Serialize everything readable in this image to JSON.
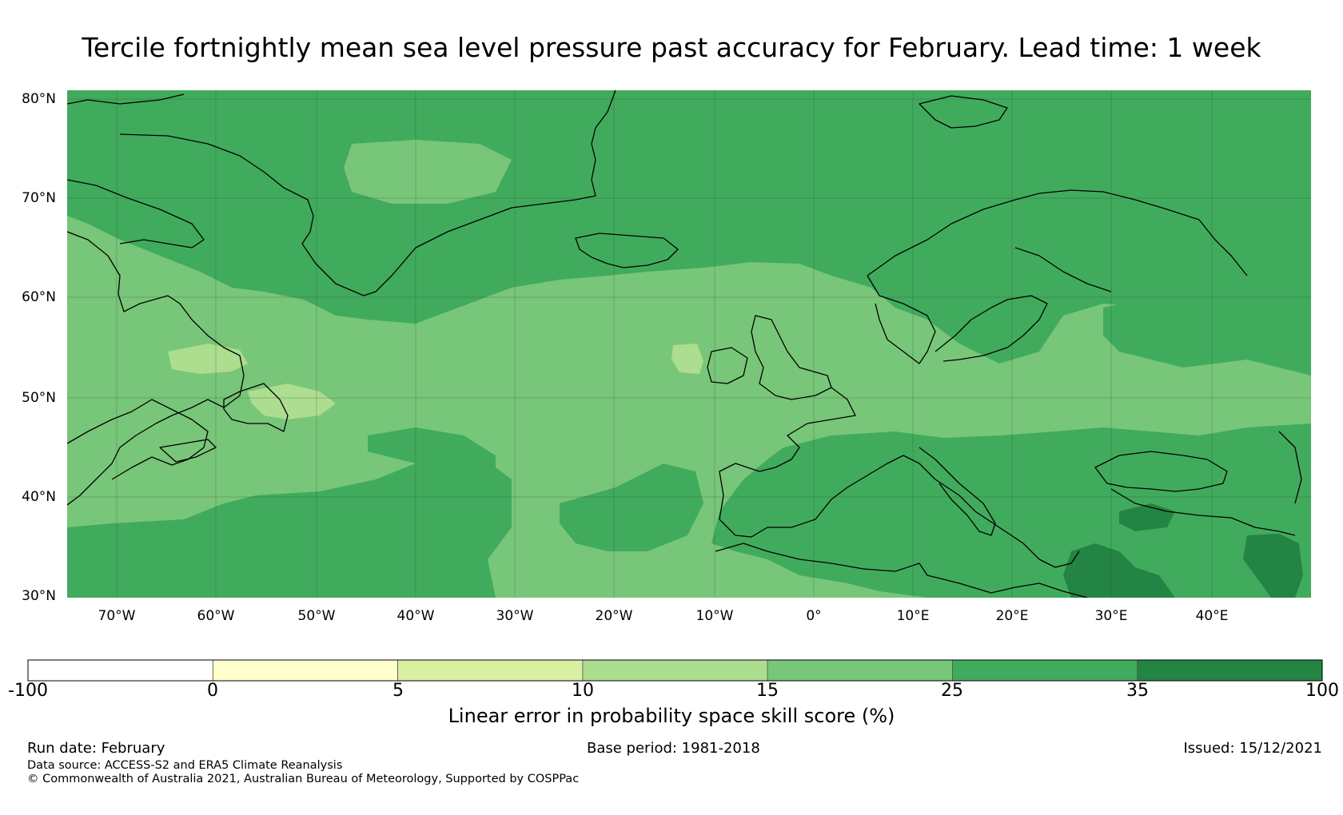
{
  "title": "Tercile fortnightly mean sea level pressure past accuracy for February. Lead time: 1 week",
  "map": {
    "lon_range": [
      -75,
      50
    ],
    "lat_range": [
      30,
      81
    ],
    "lat_labels": [
      {
        "value": 80,
        "text": "80°N"
      },
      {
        "value": 70,
        "text": "70°N"
      },
      {
        "value": 60,
        "text": "60°N"
      },
      {
        "value": 50,
        "text": "50°N"
      },
      {
        "value": 40,
        "text": "40°N"
      },
      {
        "value": 30,
        "text": "30°N"
      }
    ],
    "lon_labels": [
      {
        "value": -70,
        "text": "70°W"
      },
      {
        "value": -60,
        "text": "60°W"
      },
      {
        "value": -50,
        "text": "50°W"
      },
      {
        "value": -40,
        "text": "40°W"
      },
      {
        "value": -30,
        "text": "30°W"
      },
      {
        "value": -20,
        "text": "20°W"
      },
      {
        "value": -10,
        "text": "10°W"
      },
      {
        "value": 0,
        "text": "0°"
      },
      {
        "value": 10,
        "text": "10°E"
      },
      {
        "value": 20,
        "text": "20°E"
      },
      {
        "value": 30,
        "text": "30°E"
      },
      {
        "value": 40,
        "text": "40°E"
      }
    ]
  },
  "colorbar": {
    "title": "Linear error in probability space skill score (%)",
    "ticks": [
      "-100",
      "0",
      "5",
      "10",
      "15",
      "25",
      "35",
      "100"
    ],
    "colors": [
      "#ffffff",
      "#ffffcc",
      "#d9f0a3",
      "#addd8e",
      "#78c679",
      "#41ab5d",
      "#238443"
    ]
  },
  "footer": {
    "run_date": "Run date: February",
    "base_period": "Base period: 1981-2018",
    "issued": "Issued: 15/12/2021",
    "data_source": "Data source: ACCESS-S2 and ERA5 Climate Reanalysis",
    "copyright": "© Commonwealth of Australia 2021, Australian Bureau of Meteorology, Supported by COSPPac"
  }
}
